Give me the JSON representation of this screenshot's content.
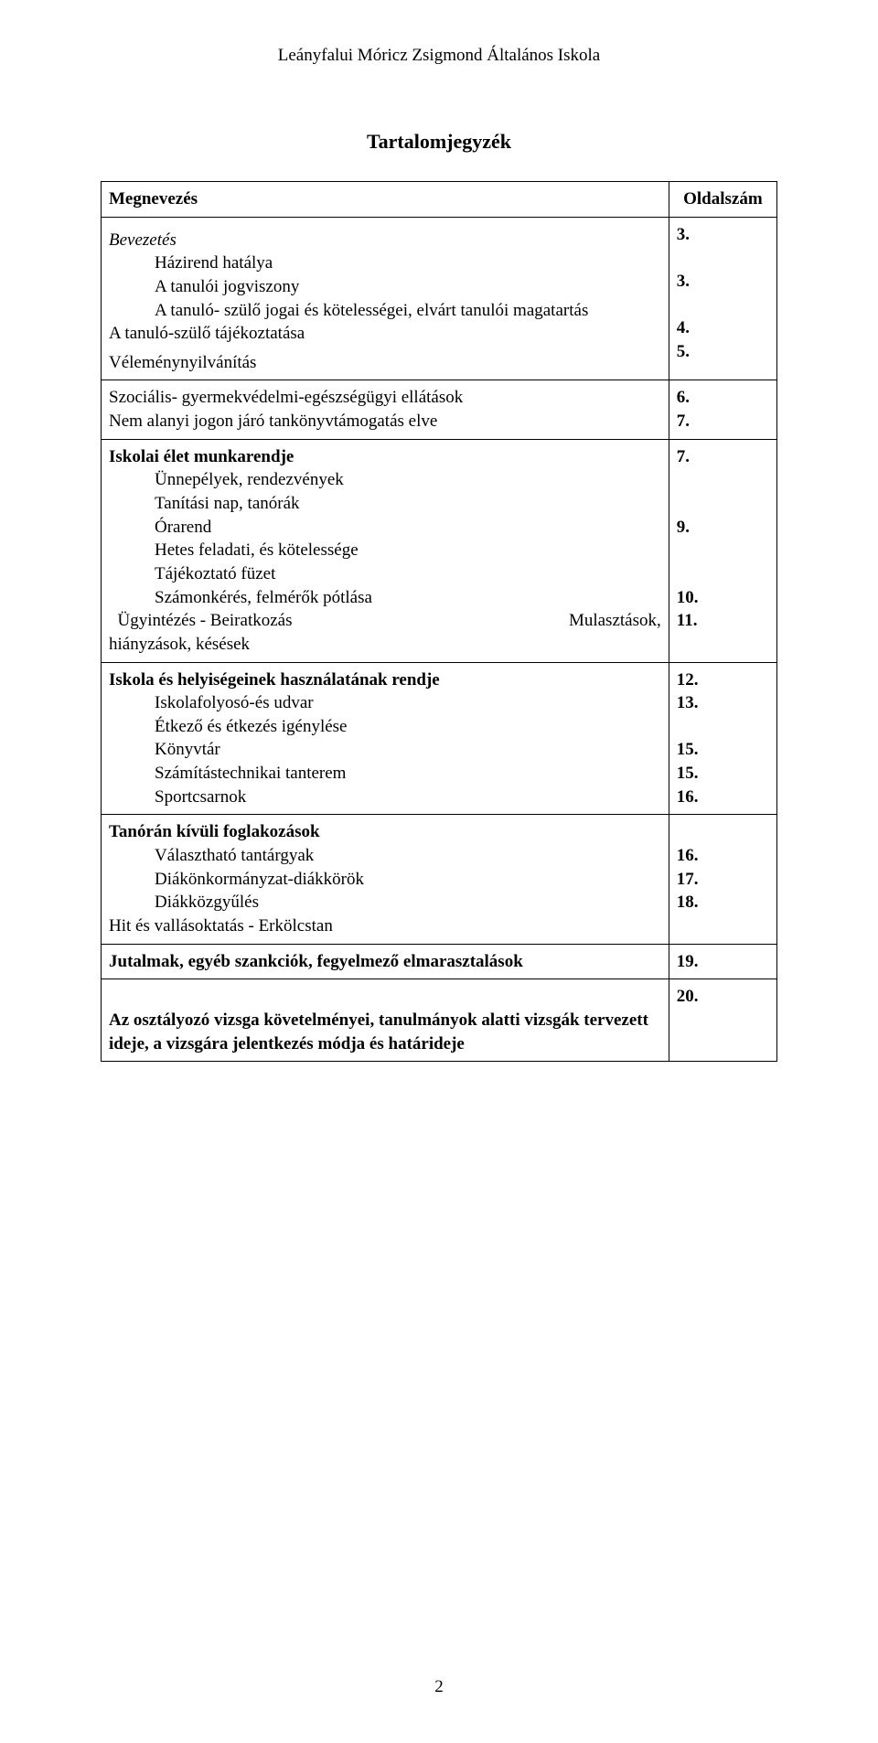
{
  "header": "Leányfalui Móricz Zsigmond Általános Iskola",
  "title": "Tartalomjegyzék",
  "header_row": {
    "left": "Megnevezés",
    "right": "Oldalszám"
  },
  "sections": {
    "s1": {
      "l1": "Bevezetés",
      "l2": "Házirend hatálya",
      "l3": "A tanulói jogviszony",
      "l4": "A tanuló- szülő jogai és kötelességei, elvárt tanulói magatartás",
      "l5": "A tanuló-szülő tájékoztatása",
      "l6": "Véleménynyilvánítás",
      "p1": "3.",
      "p2": "3.",
      "p3": "4.",
      "p4": "5."
    },
    "s2": {
      "l1": "Szociális- gyermekvédelmi-egészségügyi ellátások",
      "l2": "Nem alanyi jogon járó tankönyvtámogatás elve",
      "p1": "6.",
      "p2": "7."
    },
    "s3": {
      "l1": "Iskolai élet munkarendje",
      "l2": "Ünnepélyek, rendezvények",
      "l3": "Tanítási nap, tanórák",
      "l4": "Órarend",
      "l5": "Hetes feladati, és kötelessége",
      "l6": "Tájékoztató füzet",
      "l7": "Számonkérés, felmérők pótlása",
      "l8a": "Ügyintézés - Beiratkozás",
      "l8b": "Mulasztások,",
      "l9": "hiányzások, késések",
      "p1": "7.",
      "p2": "9.",
      "p3": "10.",
      "p4": "11."
    },
    "s4": {
      "l1": "Iskola és helyiségeinek használatának rendje",
      "l2": "Iskolafolyosó-és udvar",
      "l3": "Étkező és étkezés igénylése",
      "l4": "Könyvtár",
      "l5": "Számítástechnikai tanterem",
      "l6": "Sportcsarnok",
      "p1": "12.",
      "p2": "13.",
      "p3": "15.",
      "p4": "15.",
      "p5": "16."
    },
    "s5": {
      "l1": "Tanórán kívüli foglakozások",
      "l2": "Választható tantárgyak",
      "l3": "Diákönkormányzat-diákkörök",
      "l4": "Diákközgyűlés",
      "l5": "Hit és vallásoktatás - Erkölcstan",
      "p1": "16.",
      "p2": "17.",
      "p3": "18."
    },
    "s6": {
      "l1": "Jutalmak, egyéb szankciók, fegyelmező elmarasztalások",
      "p1": "19."
    },
    "s7": {
      "l1": "Az osztályozó vizsga követelményei, tanulmányok alatti vizsgák tervezett ideje, a vizsgára jelentkezés módja és határideje",
      "p1": "20."
    }
  },
  "page_number": "2"
}
